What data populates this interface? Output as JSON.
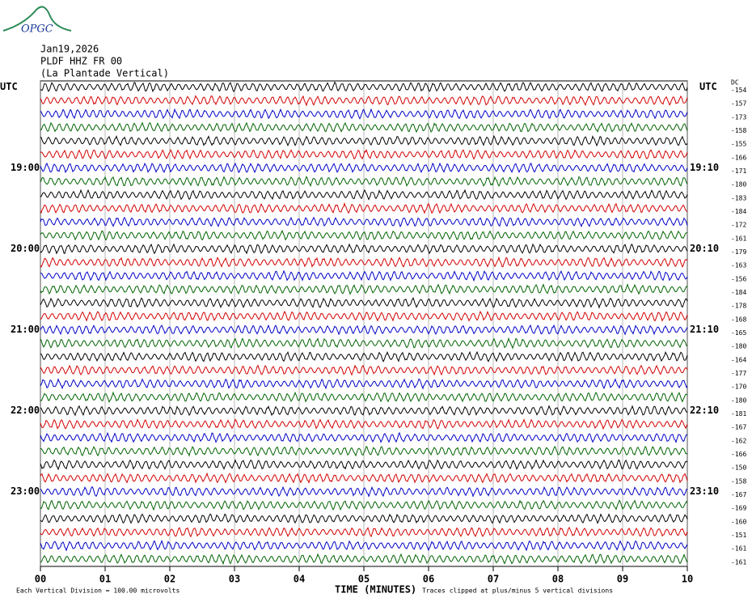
{
  "logo": "OPGC",
  "chart_data": {
    "type": "helicorder",
    "title_lines": [
      "Jan19,2026",
      "PLDF HHZ FR 00",
      "(La Plantade Vertical)"
    ],
    "left_labels": [
      "UTC",
      "19:00",
      "20:00",
      "21:00",
      "22:00",
      "23:00"
    ],
    "right_labels": [
      "UTC",
      "19:10",
      "20:10",
      "21:10",
      "22:10",
      "23:10"
    ],
    "dc_label": "DC",
    "dc_offsets": [
      -154,
      -157,
      -173,
      -158,
      -155,
      -166,
      -171,
      -180,
      -183,
      -184,
      -172,
      -161,
      -179,
      -163,
      -156,
      -184,
      -178,
      -168,
      -165,
      -180,
      -164,
      -177,
      -170,
      -180,
      -181,
      -167,
      -162,
      -166,
      -150,
      -158,
      -167,
      -169,
      -160,
      -151,
      -161,
      -161
    ],
    "trace_colors": [
      "#000000",
      "#d40000",
      "#0000c8",
      "#006400"
    ],
    "xlim": [
      0,
      10
    ],
    "xticks": [
      {
        "value": 0,
        "label": "00"
      },
      {
        "value": 1,
        "label": "01"
      },
      {
        "value": 2,
        "label": "02"
      },
      {
        "value": 3,
        "label": "03"
      },
      {
        "value": 4,
        "label": "04"
      },
      {
        "value": 5,
        "label": "05"
      },
      {
        "value": 6,
        "label": "06"
      },
      {
        "value": 7,
        "label": "07"
      },
      {
        "value": 8,
        "label": "08"
      },
      {
        "value": 9,
        "label": "09"
      },
      {
        "value": 10,
        "label": "10"
      }
    ],
    "xlabel": "TIME (MINUTES)",
    "footer_left": "Each Vertical Division =  100.00 microvolts",
    "footer_right": "Traces clipped at plus/minus 5 vertical divisions"
  }
}
